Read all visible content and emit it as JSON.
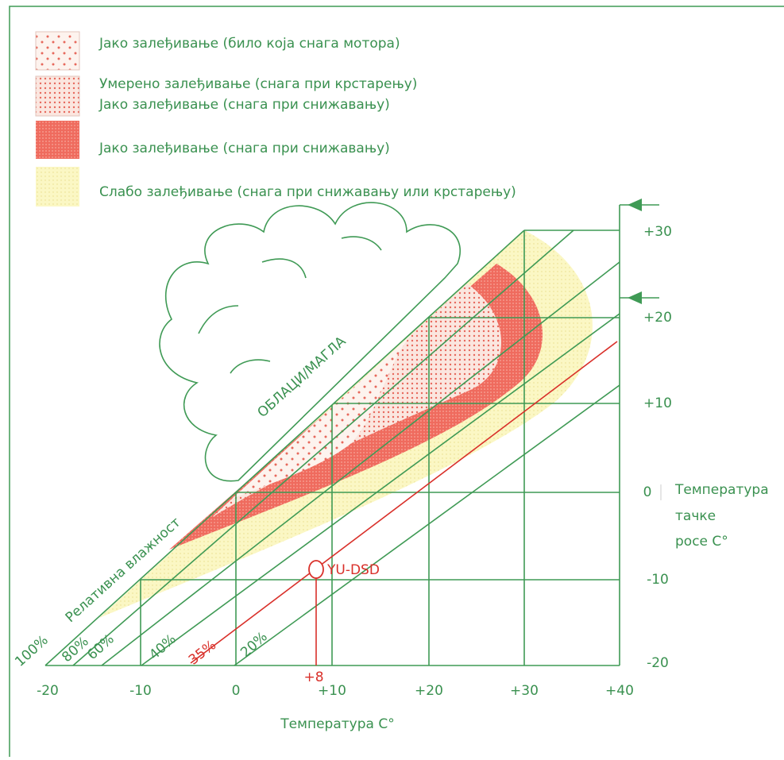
{
  "legend": [
    [
      "Јако залеђивање (било која снага мотора)"
    ],
    [
      "Умерено залеђивање (снага при крстарењу)",
      "Јако залеђивање  (снага при снижавању)"
    ],
    [
      "Јако залеђивање   (снага при снижавању)"
    ],
    [
      "Слабо залеђивање   (снага при снижавању или крстарењу)"
    ]
  ],
  "cloud_label": "ОБЛАЦИ/МАГЛА",
  "humidity": {
    "label": "Релативна влажност",
    "lines": [
      "100%",
      "80%",
      "60%",
      "40%",
      "20%"
    ]
  },
  "x_axis": {
    "label": "Температура C°",
    "ticks": [
      "-20",
      "-10",
      "0",
      "+10",
      "+20",
      "+30",
      "+40"
    ]
  },
  "dew_axis": {
    "label": [
      "Температура",
      "тачке",
      "росе C°"
    ],
    "ticks": [
      "+30",
      "+20",
      "+10",
      "0",
      "-10",
      "-20"
    ]
  },
  "marker": {
    "label": "YU-DSD",
    "humidity": "35%",
    "temperature": "+8"
  }
}
